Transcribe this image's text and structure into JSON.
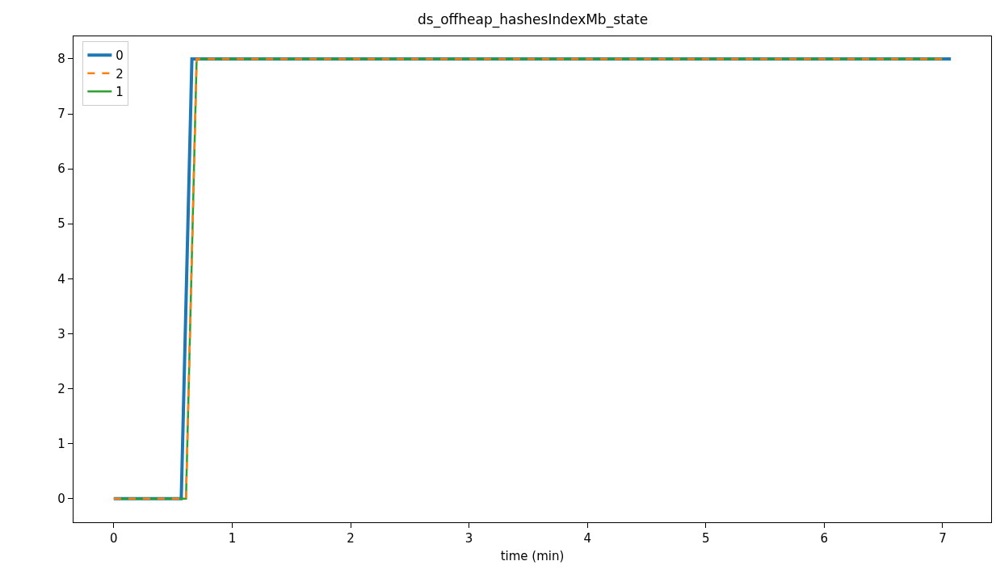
{
  "chart_data": {
    "type": "line",
    "title": "ds_offheap_hashesIndexMb_state",
    "xlabel": "time (min)",
    "xlim": [
      -0.34,
      7.41
    ],
    "ylim": [
      -0.43,
      8.41
    ],
    "xticks": [
      0,
      1,
      2,
      3,
      4,
      5,
      6,
      7
    ],
    "yticks": [
      0,
      1,
      2,
      3,
      4,
      5,
      6,
      7,
      8
    ],
    "legend": "top left",
    "series": [
      {
        "name": "0",
        "color": "#1f77b4",
        "line_style": "solid",
        "x": [
          0,
          0.57,
          0.66,
          7.07
        ],
        "values": [
          0,
          0,
          8,
          8
        ]
      },
      {
        "name": "2",
        "color": "#ff7f0e",
        "line_style": "dashed",
        "x": [
          0,
          0.61,
          0.7,
          7.0
        ],
        "values": [
          0,
          0,
          8,
          8
        ]
      },
      {
        "name": "1",
        "color": "#2ca02c",
        "line_style": "solid",
        "x": [
          0,
          0.61,
          0.7,
          7.0
        ],
        "values": [
          0,
          0,
          8,
          8
        ]
      }
    ]
  }
}
